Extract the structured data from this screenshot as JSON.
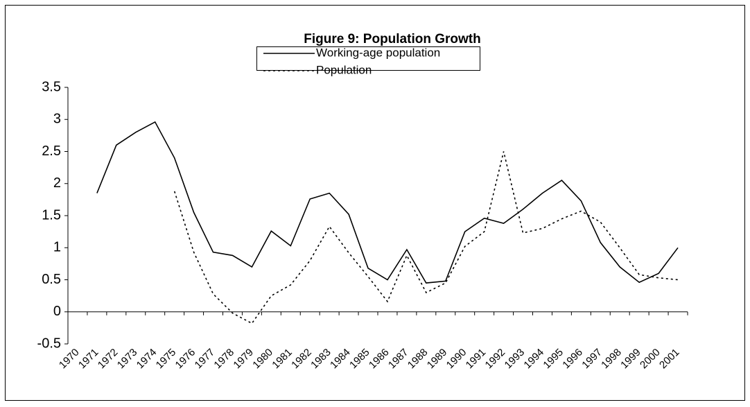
{
  "chart_data": {
    "type": "line",
    "title": "Figure 9: Population Growth",
    "categories": [
      "1970",
      "1971",
      "1972",
      "1973",
      "1974",
      "1975",
      "1976",
      "1977",
      "1978",
      "1979",
      "1980",
      "1981",
      "1982",
      "1983",
      "1984",
      "1985",
      "1986",
      "1987",
      "1988",
      "1989",
      "1990",
      "1991",
      "1992",
      "1993",
      "1994",
      "1995",
      "1996",
      "1997",
      "1998",
      "1999",
      "2000",
      "2001"
    ],
    "series": [
      {
        "name": "Working-age population",
        "color": "#000000",
        "style": "solid",
        "values": [
          null,
          1.85,
          2.6,
          2.8,
          2.96,
          2.4,
          1.55,
          0.93,
          0.88,
          0.7,
          1.26,
          1.03,
          1.76,
          1.85,
          1.52,
          0.68,
          0.5,
          0.97,
          0.45,
          0.48,
          1.25,
          1.46,
          1.38,
          1.6,
          1.85,
          2.05,
          1.73,
          1.08,
          0.7,
          0.46,
          0.6,
          1.0
        ]
      },
      {
        "name": "Population",
        "color": "#000000",
        "style": "dotted",
        "values": [
          null,
          null,
          null,
          null,
          null,
          1.88,
          0.93,
          0.28,
          -0.02,
          -0.18,
          0.25,
          0.42,
          0.8,
          1.33,
          0.92,
          0.55,
          0.16,
          0.88,
          0.3,
          0.45,
          1.02,
          1.25,
          2.5,
          1.23,
          1.3,
          1.45,
          1.57,
          1.4,
          1.0,
          0.58,
          0.53,
          0.5
        ]
      }
    ],
    "ylim": [
      -0.5,
      3.5
    ],
    "yticks": [
      -0.5,
      0,
      0.5,
      1,
      1.5,
      2,
      2.5,
      3,
      3.5
    ],
    "grid": false,
    "legend": "top"
  }
}
